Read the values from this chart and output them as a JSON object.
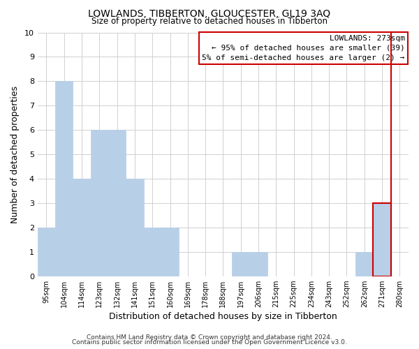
{
  "title": "LOWLANDS, TIBBERTON, GLOUCESTER, GL19 3AQ",
  "subtitle": "Size of property relative to detached houses in Tibberton",
  "xlabel": "Distribution of detached houses by size in Tibberton",
  "ylabel": "Number of detached properties",
  "bin_labels": [
    "95sqm",
    "104sqm",
    "114sqm",
    "123sqm",
    "132sqm",
    "141sqm",
    "151sqm",
    "160sqm",
    "169sqm",
    "178sqm",
    "188sqm",
    "197sqm",
    "206sqm",
    "215sqm",
    "225sqm",
    "234sqm",
    "243sqm",
    "252sqm",
    "262sqm",
    "271sqm",
    "280sqm"
  ],
  "bar_heights": [
    2,
    8,
    4,
    6,
    6,
    4,
    2,
    2,
    0,
    0,
    0,
    1,
    1,
    0,
    0,
    0,
    0,
    0,
    1,
    3,
    0
  ],
  "bar_color": "#b8cfe8",
  "highlight_bar_index": 19,
  "highlight_bar_edge_color": "#cc0000",
  "ylim": [
    0,
    10
  ],
  "yticks": [
    0,
    1,
    2,
    3,
    4,
    5,
    6,
    7,
    8,
    9,
    10
  ],
  "annotation_title": "LOWLANDS: 273sqm",
  "annotation_line1": "← 95% of detached houses are smaller (39)",
  "annotation_line2": "5% of semi-detached houses are larger (2) →",
  "annotation_box_facecolor": "#ffffff",
  "annotation_box_edgecolor": "#cc0000",
  "vline_color": "#cc0000",
  "footer1": "Contains HM Land Registry data © Crown copyright and database right 2024.",
  "footer2": "Contains public sector information licensed under the Open Government Licence v3.0.",
  "grid_color": "#d0d0d0",
  "background_color": "#ffffff",
  "bar_edge_color": "#b8cfe8"
}
